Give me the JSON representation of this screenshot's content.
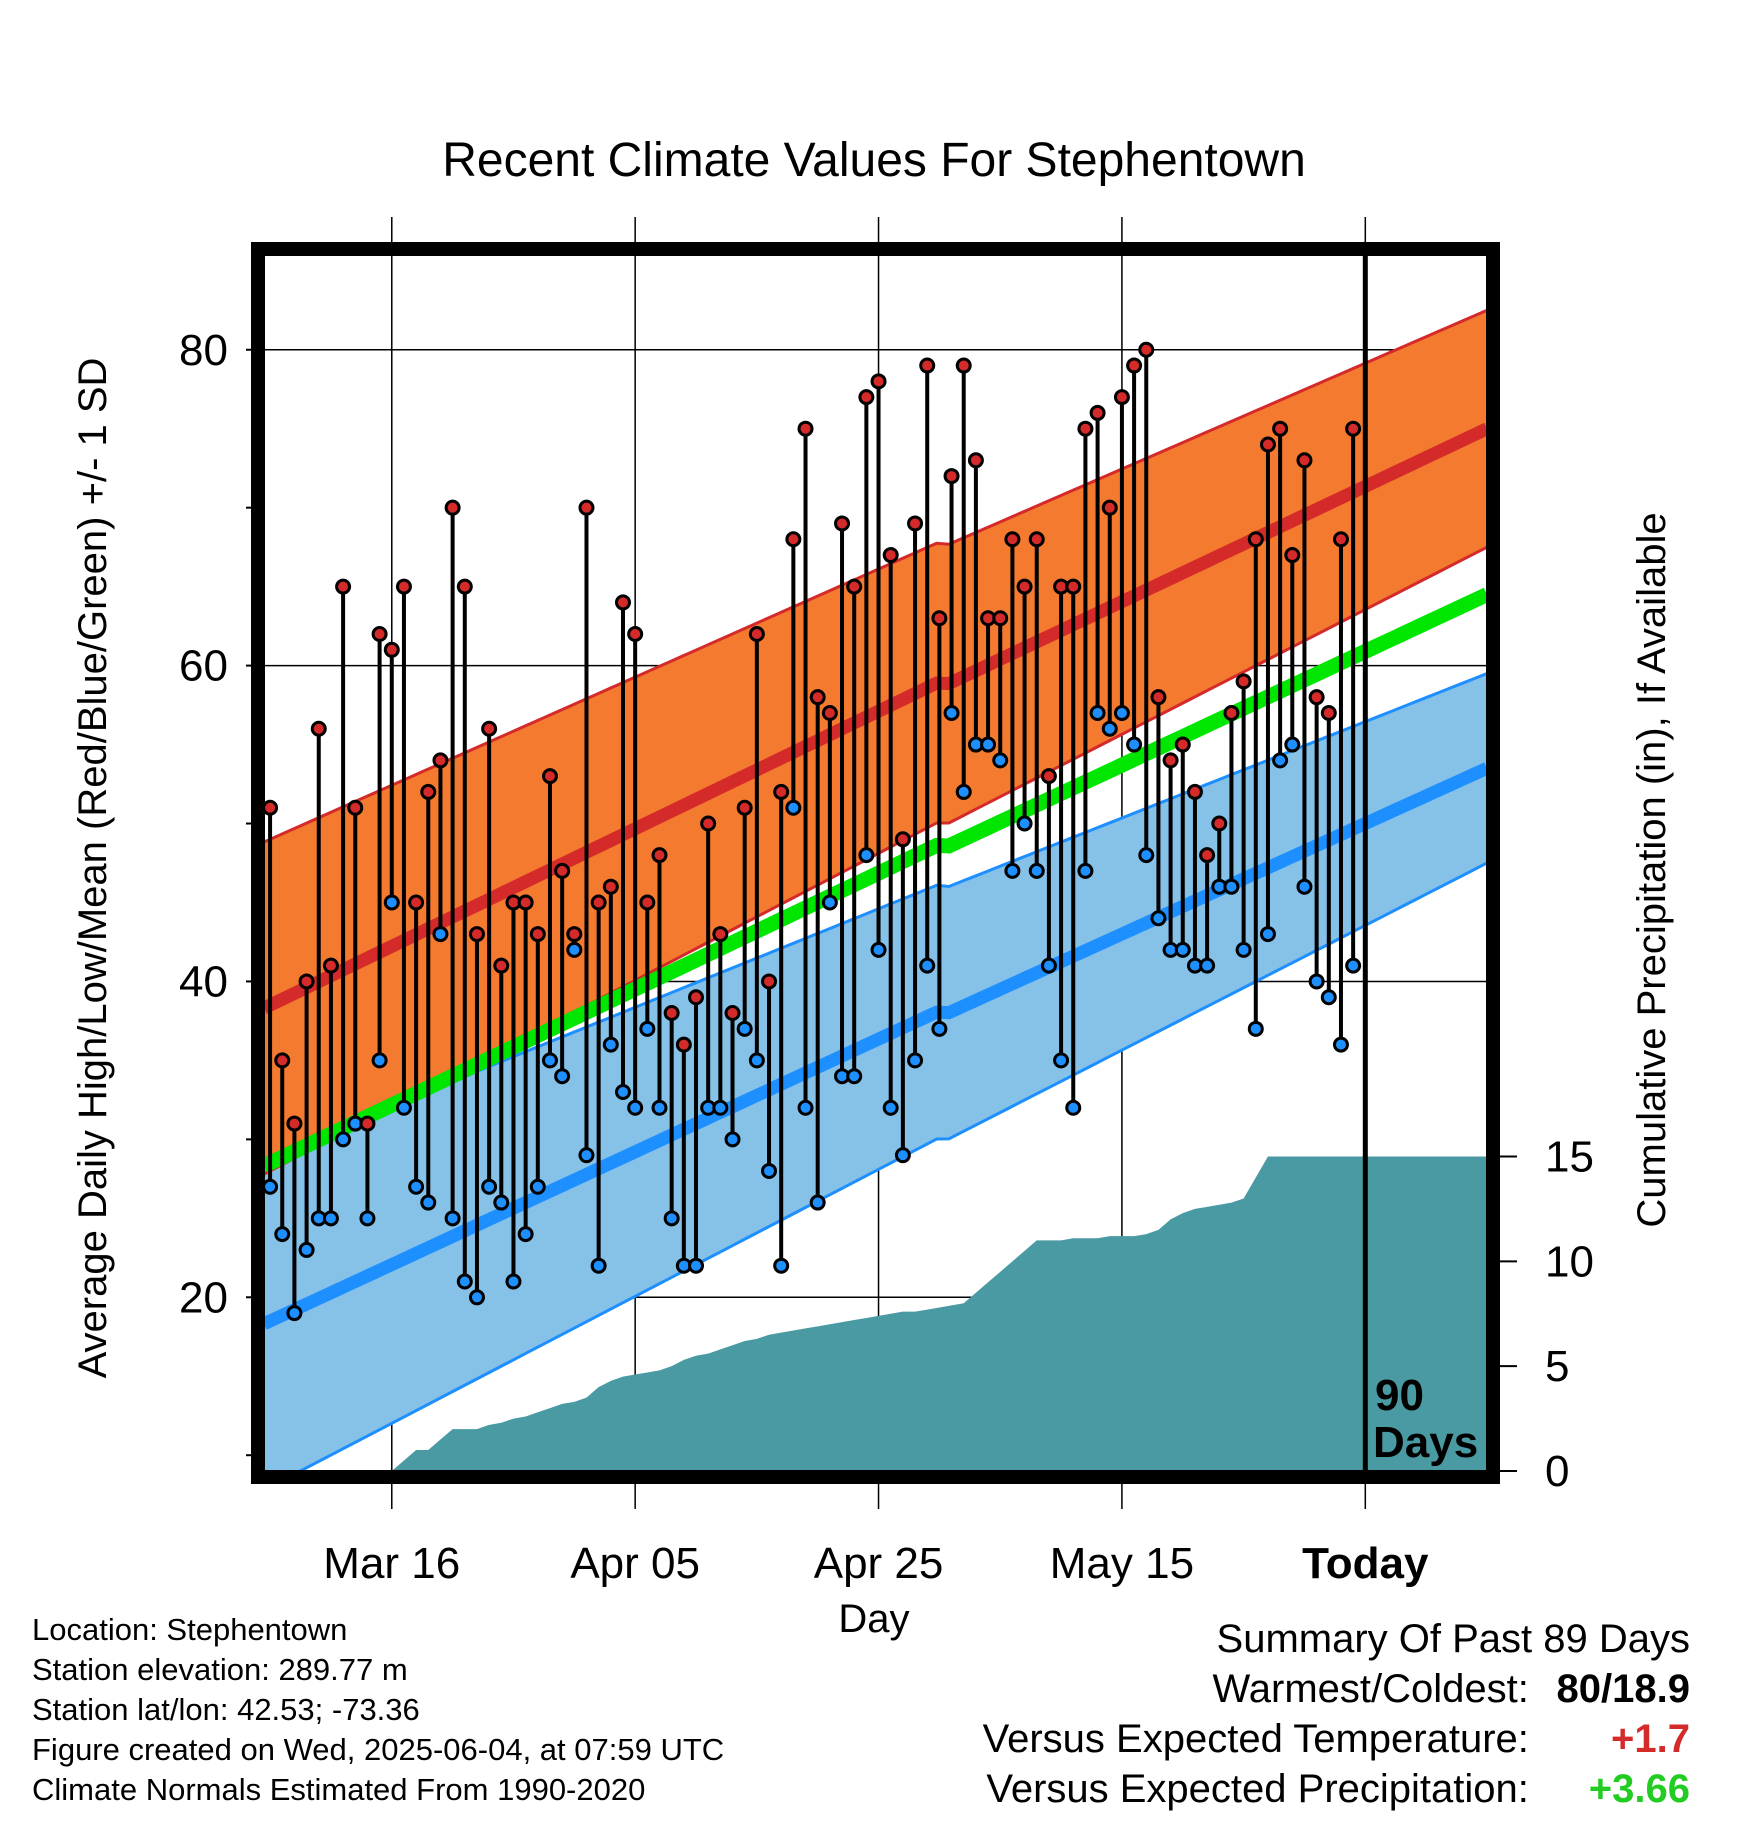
{
  "chart_data": {
    "type": "line",
    "title": "Recent Climate Values For Stephentown",
    "xlabel": "Day",
    "ylabel": "Average Daily High/Low/Mean (Red/Blue/Green) +/- 1 SD",
    "y2label": "Cumulative Precipitation (in), If Available",
    "xlim": [
      -0.5,
      100
    ],
    "ylim": [
      9,
      86
    ],
    "y2lim": [
      0,
      58
    ],
    "yticks": [
      20,
      40,
      60,
      80
    ],
    "y2ticks": [
      0,
      5,
      10,
      15
    ],
    "xtick_days": [
      10,
      30,
      50,
      70,
      90
    ],
    "xtick_labels": [
      "Mar 16",
      "Apr 05",
      "Apr 25",
      "May 15",
      "Today"
    ],
    "today_day": 90,
    "today_marker_label": [
      "90",
      "Days"
    ],
    "grid": true,
    "normals": {
      "high_mean_start": 38.5,
      "high_mean_end": 75.0,
      "high_sd_start": 10.5,
      "high_sd_end": 7.5,
      "low_mean_start": 18.5,
      "low_mean_end": 53.5,
      "low_sd_start": 10.5,
      "low_sd_end": 6.0,
      "avg_mean_start": 28.5,
      "avg_mean_end": 64.5
    },
    "series": [
      {
        "name": "High",
        "values": [
          51,
          35,
          31,
          40,
          56,
          41,
          65,
          51,
          31,
          62,
          61,
          65,
          45,
          52,
          54,
          70,
          65,
          43,
          56,
          41,
          45,
          45,
          43,
          53,
          47,
          43,
          70,
          45,
          46,
          64,
          62,
          45,
          48,
          38,
          36,
          39,
          50,
          43,
          38,
          51,
          62,
          40,
          52,
          68,
          75,
          58,
          57,
          69,
          65,
          77,
          78,
          67,
          49,
          69,
          79,
          63,
          72,
          79,
          73,
          63,
          63,
          68,
          65,
          68,
          53,
          65,
          65,
          75,
          76,
          70,
          77,
          79,
          80,
          58,
          54,
          55,
          52,
          48,
          50,
          57,
          59,
          68,
          74,
          75,
          67,
          73,
          58,
          57,
          68,
          75
        ]
      },
      {
        "name": "Low",
        "values": [
          27,
          24,
          19,
          23,
          25,
          25,
          30,
          31,
          25,
          35,
          45,
          32,
          27,
          26,
          43,
          25,
          21,
          20,
          27,
          26,
          21,
          24,
          27,
          35,
          34,
          42,
          29,
          22,
          36,
          33,
          32,
          37,
          32,
          25,
          22,
          22,
          32,
          32,
          30,
          37,
          35,
          28,
          22,
          51,
          32,
          26,
          45,
          34,
          34,
          48,
          42,
          32,
          29,
          35,
          41,
          37,
          57,
          52,
          55,
          55,
          54,
          47,
          50,
          47,
          41,
          35,
          32,
          47,
          57,
          56,
          57,
          55,
          48,
          44,
          42,
          42,
          41,
          41,
          46,
          46,
          42,
          37,
          43,
          54,
          55,
          46,
          40,
          39,
          36,
          41
        ]
      },
      {
        "name": "Precip",
        "values": [
          0,
          0,
          0,
          0,
          0,
          0,
          0,
          0,
          0,
          0,
          0,
          0.5,
          1.0,
          1.0,
          1.5,
          2.0,
          2.0,
          2.0,
          2.2,
          2.3,
          2.5,
          2.6,
          2.8,
          3.0,
          3.2,
          3.3,
          3.5,
          4.0,
          4.3,
          4.5,
          4.6,
          4.7,
          4.8,
          5.0,
          5.3,
          5.5,
          5.6,
          5.8,
          6.0,
          6.2,
          6.3,
          6.5,
          6.6,
          6.7,
          6.8,
          6.9,
          7.0,
          7.1,
          7.2,
          7.3,
          7.4,
          7.5,
          7.6,
          7.6,
          7.7,
          7.8,
          7.9,
          8.0,
          8.5,
          9.0,
          9.5,
          10.0,
          10.5,
          11.0,
          11.0,
          11.0,
          11.1,
          11.1,
          11.1,
          11.2,
          11.2,
          11.2,
          11.3,
          11.5,
          12.0,
          12.3,
          12.5,
          12.6,
          12.7,
          12.8,
          13.0,
          14.0,
          15.0,
          15.0,
          15.0,
          15.0,
          15.0,
          15.0,
          15.0,
          15.0
        ]
      }
    ]
  },
  "info": {
    "location": "Location: Stephentown",
    "elevation": "Station elevation: 289.77 m",
    "latlon": "Station lat/lon: 42.53; -73.36",
    "created": "Figure created on Wed, 2025-06-04, at 07:59 UTC",
    "normals": "Climate Normals Estimated From 1990-2020"
  },
  "summary": {
    "heading": "Summary Of Past 89 Days",
    "warm_cold_label": "Warmest/Coldest:",
    "warm_cold_value": "80/18.9",
    "temp_label": "Versus Expected Temperature:",
    "temp_value": "+1.7",
    "precip_label": "Versus Expected Precipitation:",
    "precip_value": "+3.66"
  },
  "colors": {
    "high_band": "#f47a30",
    "high_mean": "#d42a2a",
    "low_band": "#86c1e8",
    "low_mean": "#1e8fff",
    "avg_mean": "#00e600",
    "precip": "#4a9aa3",
    "high_dot": "#d42a2a",
    "low_dot": "#1e8fff",
    "temp_anomaly": "#d42a2a",
    "precip_anomaly": "#22cc22"
  }
}
